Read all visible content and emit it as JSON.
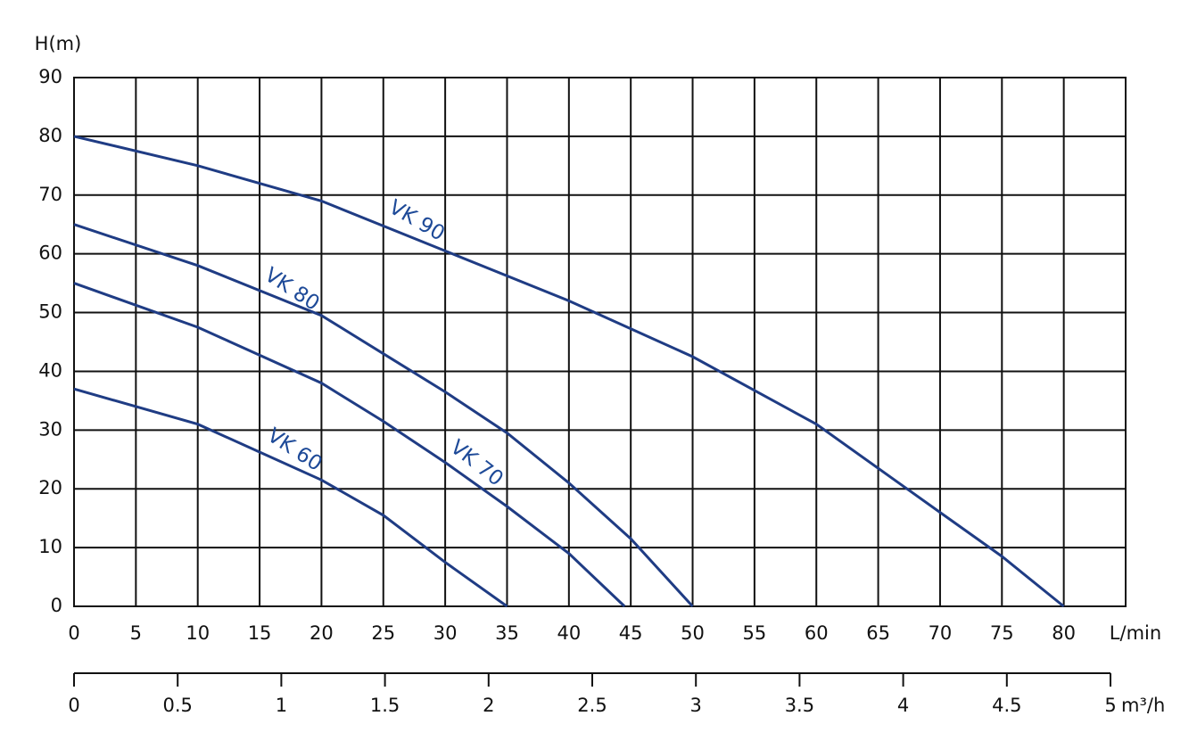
{
  "chart_data": {
    "type": "line",
    "ylabel": "H(m)",
    "xlabel": "L/min",
    "x2label": "m³/h",
    "xlim": [
      0,
      85
    ],
    "xticks": [
      0,
      5,
      10,
      15,
      20,
      25,
      30,
      35,
      40,
      45,
      50,
      55,
      60,
      65,
      70,
      75,
      80
    ],
    "ylim": [
      0,
      90
    ],
    "yticks": [
      0,
      10,
      20,
      30,
      40,
      50,
      60,
      70,
      80,
      90
    ],
    "x2lim": [
      0,
      5
    ],
    "x2ticks": [
      0,
      0.5,
      1,
      1.5,
      2,
      2.5,
      3,
      3.5,
      4,
      4.5,
      5
    ],
    "grid": true,
    "series": [
      {
        "name": "VK 90",
        "color": "#1f3c84",
        "x": [
          0,
          10,
          20,
          30,
          40,
          50,
          60,
          70,
          75,
          80
        ],
        "values": [
          80,
          75,
          69,
          60.5,
          52,
          42.5,
          31,
          16,
          8.5,
          0
        ]
      },
      {
        "name": "VK 80",
        "color": "#1f3c84",
        "x": [
          0,
          10,
          20,
          25,
          30,
          35,
          40,
          45,
          50
        ],
        "values": [
          65,
          58,
          49.5,
          43,
          36.5,
          29.5,
          21,
          11.5,
          0
        ]
      },
      {
        "name": "VK 70",
        "color": "#1f3c84",
        "x": [
          0,
          10,
          20,
          25,
          30,
          35,
          40,
          44.5
        ],
        "values": [
          55,
          47.5,
          38,
          31.5,
          24.5,
          17,
          9,
          0
        ]
      },
      {
        "name": "VK 60",
        "color": "#1f3c84",
        "x": [
          0,
          10,
          20,
          25,
          30,
          35
        ],
        "values": [
          37,
          31,
          21.5,
          15.5,
          7.5,
          0
        ]
      }
    ]
  }
}
